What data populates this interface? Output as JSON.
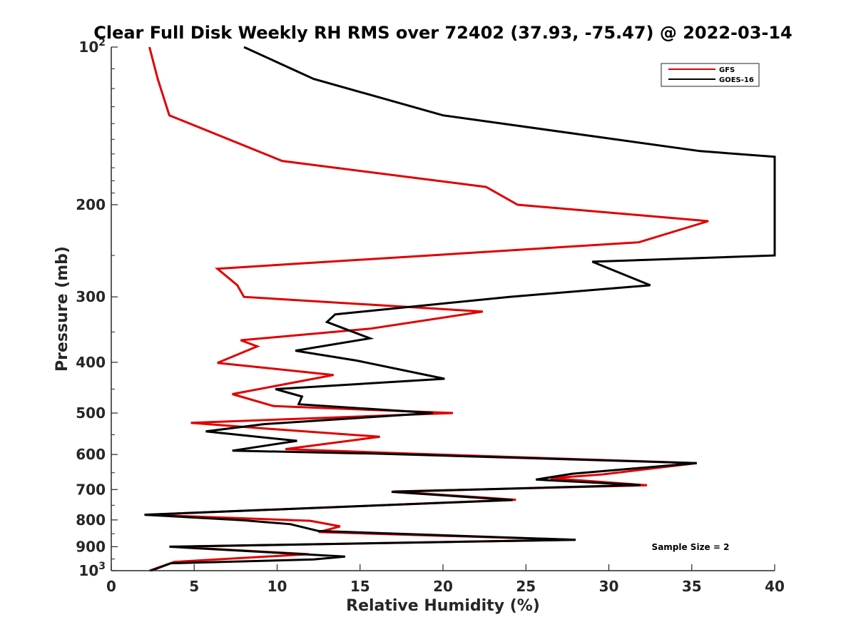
{
  "chart_data": {
    "type": "line",
    "title": "Clear Full Disk Weekly RH RMS over 72402 (37.93, -75.47) @ 2022-03-14",
    "xlabel": "Relative Humidity (%)",
    "ylabel": "Pressure (mb)",
    "xlim": [
      0,
      40
    ],
    "ylim": [
      100,
      1000
    ],
    "yscale": "log",
    "y_reversed": true,
    "xticks": [
      0,
      5,
      10,
      15,
      20,
      25,
      30,
      35,
      40
    ],
    "xtick_labels": [
      "0",
      "5",
      "10",
      "15",
      "20",
      "25",
      "30",
      "35",
      "40"
    ],
    "yticks": [
      {
        "value": 100,
        "base": "10",
        "exp": "2",
        "label": "10^2"
      },
      {
        "value": 200,
        "base": "200",
        "exp": "",
        "label": "200"
      },
      {
        "value": 300,
        "base": "300",
        "exp": "",
        "label": "300"
      },
      {
        "value": 400,
        "base": "400",
        "exp": "",
        "label": "400"
      },
      {
        "value": 500,
        "base": "500",
        "exp": "",
        "label": "500"
      },
      {
        "value": 600,
        "base": "600",
        "exp": "",
        "label": "600"
      },
      {
        "value": 700,
        "base": "700",
        "exp": "",
        "label": "700"
      },
      {
        "value": 800,
        "base": "800",
        "exp": "",
        "label": "800"
      },
      {
        "value": 900,
        "base": "900",
        "exp": "",
        "label": "900"
      },
      {
        "value": 1000,
        "base": "10",
        "exp": "3",
        "label": "10^3"
      }
    ],
    "legend_position": "top-right",
    "annotation": "Sample Size = 2",
    "series": [
      {
        "name": "GFS",
        "color": "#e00000",
        "points": [
          [
            2.3,
            100
          ],
          [
            2.8,
            115
          ],
          [
            3.5,
            135
          ],
          [
            10.3,
            165
          ],
          [
            22.6,
            185
          ],
          [
            24.5,
            200
          ],
          [
            36.0,
            215
          ],
          [
            31.8,
            236
          ],
          [
            6.4,
            265
          ],
          [
            7.6,
            285
          ],
          [
            8.0,
            300
          ],
          [
            22.4,
            320
          ],
          [
            15.6,
            345
          ],
          [
            7.8,
            363
          ],
          [
            8.8,
            373
          ],
          [
            6.4,
            401
          ],
          [
            13.4,
            423
          ],
          [
            7.3,
            460
          ],
          [
            9.8,
            485
          ],
          [
            20.6,
            500
          ],
          [
            4.8,
            522
          ],
          [
            9.2,
            535
          ],
          [
            16.2,
            555
          ],
          [
            10.5,
            586
          ],
          [
            18.3,
            598
          ],
          [
            35.3,
            623
          ],
          [
            29.6,
            655
          ],
          [
            26.5,
            666
          ],
          [
            32.3,
            687
          ],
          [
            17.0,
            706
          ],
          [
            24.4,
            732
          ],
          [
            2.1,
            782
          ],
          [
            12.0,
            803
          ],
          [
            13.8,
            823
          ],
          [
            12.5,
            844
          ],
          [
            28.0,
            873
          ],
          [
            3.7,
            900
          ],
          [
            11.9,
            930
          ],
          [
            3.8,
            962
          ],
          [
            2.3,
            1000
          ]
        ]
      },
      {
        "name": "GOES-16",
        "color": "#000000",
        "points": [
          [
            8.0,
            100
          ],
          [
            12.2,
            115
          ],
          [
            20.0,
            135
          ],
          [
            35.5,
            158
          ],
          [
            40.0,
            162
          ],
          [
            40.0,
            250
          ],
          [
            29.0,
            257
          ],
          [
            32.5,
            285
          ],
          [
            24.0,
            300
          ],
          [
            13.5,
            324
          ],
          [
            13.0,
            335
          ],
          [
            15.6,
            360
          ],
          [
            11.1,
            380
          ],
          [
            14.8,
            397
          ],
          [
            20.1,
            430
          ],
          [
            9.9,
            450
          ],
          [
            11.5,
            465
          ],
          [
            11.3,
            481
          ],
          [
            19.4,
            500
          ],
          [
            9.2,
            525
          ],
          [
            5.7,
            542
          ],
          [
            11.2,
            565
          ],
          [
            7.3,
            590
          ],
          [
            16.3,
            598
          ],
          [
            35.3,
            623
          ],
          [
            27.8,
            653
          ],
          [
            25.6,
            670
          ],
          [
            31.9,
            686
          ],
          [
            16.9,
            707
          ],
          [
            24.2,
            733
          ],
          [
            2.0,
            782
          ],
          [
            7.9,
            801
          ],
          [
            10.8,
            815
          ],
          [
            12.5,
            840
          ],
          [
            28.0,
            873
          ],
          [
            3.5,
            900
          ],
          [
            14.1,
            940
          ],
          [
            12.2,
            952
          ],
          [
            3.6,
            968
          ],
          [
            2.4,
            1000
          ]
        ]
      }
    ]
  }
}
